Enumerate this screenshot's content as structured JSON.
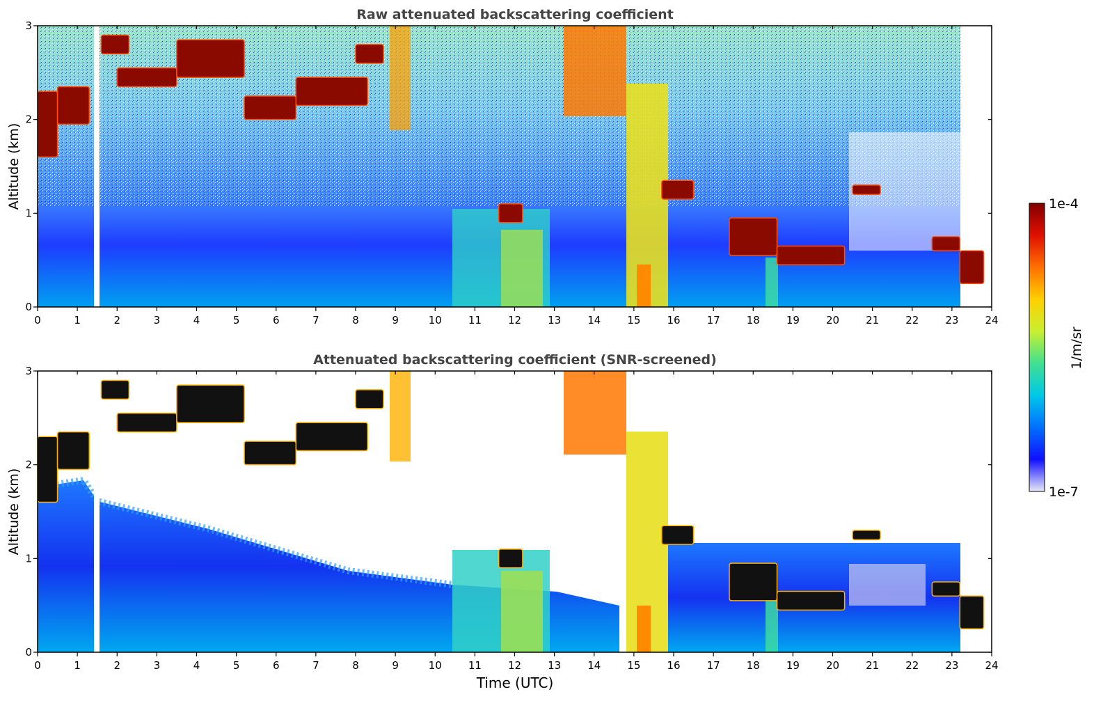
{
  "chart_data": [
    {
      "type": "heatmap",
      "title": "Raw attenuated backscattering coefficient",
      "xlabel": "",
      "ylabel": "Altitude (km)",
      "xlim": [
        0,
        24
      ],
      "ylim": [
        0,
        3
      ],
      "xticks": [
        "0",
        "1",
        "2",
        "3",
        "4",
        "5",
        "6",
        "7",
        "8",
        "9",
        "10",
        "11",
        "12",
        "13",
        "14",
        "15",
        "16",
        "17",
        "18",
        "19",
        "20",
        "21",
        "22",
        "23",
        "24"
      ],
      "yticks": [
        "0",
        "1",
        "2",
        "3"
      ],
      "grid": false,
      "cloud_segments": [
        {
          "x": [
            0.0,
            0.5
          ],
          "y": [
            1.6,
            2.3
          ]
        },
        {
          "x": [
            0.5,
            1.3
          ],
          "y": [
            1.95,
            2.35
          ]
        },
        {
          "x": [
            1.6,
            2.3
          ],
          "y": [
            2.7,
            2.9
          ]
        },
        {
          "x": [
            2.0,
            3.5
          ],
          "y": [
            2.35,
            2.55
          ]
        },
        {
          "x": [
            3.5,
            5.2
          ],
          "y": [
            2.45,
            2.85
          ]
        },
        {
          "x": [
            5.2,
            6.5
          ],
          "y": [
            2.0,
            2.25
          ]
        },
        {
          "x": [
            6.5,
            8.3
          ],
          "y": [
            2.15,
            2.45
          ]
        },
        {
          "x": [
            8.0,
            8.7
          ],
          "y": [
            2.6,
            2.8
          ]
        },
        {
          "x": [
            11.6,
            12.2
          ],
          "y": [
            0.9,
            1.1
          ]
        },
        {
          "x": [
            15.7,
            16.5
          ],
          "y": [
            1.15,
            1.35
          ]
        },
        {
          "x": [
            17.4,
            18.6
          ],
          "y": [
            0.55,
            0.95
          ]
        },
        {
          "x": [
            18.6,
            20.3
          ],
          "y": [
            0.45,
            0.65
          ]
        },
        {
          "x": [
            20.5,
            21.2
          ],
          "y": [
            1.2,
            1.3
          ]
        },
        {
          "x": [
            22.5,
            23.2
          ],
          "y": [
            0.6,
            0.75
          ]
        },
        {
          "x": [
            23.2,
            23.8
          ],
          "y": [
            0.25,
            0.6
          ]
        }
      ]
    },
    {
      "type": "heatmap",
      "title": "Attenuated backscattering coefficient (SNR-screened)",
      "xlabel": "Time (UTC)",
      "ylabel": "Altitude (km)",
      "xlim": [
        0,
        24
      ],
      "ylim": [
        0,
        3
      ],
      "xticks": [
        "0",
        "1",
        "2",
        "3",
        "4",
        "5",
        "6",
        "7",
        "8",
        "9",
        "10",
        "11",
        "12",
        "13",
        "14",
        "15",
        "16",
        "17",
        "18",
        "19",
        "20",
        "21",
        "22",
        "23",
        "24"
      ],
      "yticks": [
        "0",
        "1",
        "2",
        "3"
      ],
      "grid": false
    }
  ],
  "colorbar": {
    "label": "1/m/sr",
    "max_label": "1e-4",
    "min_label": "1e-7",
    "colors": [
      "#e8e8f8",
      "#1010ff",
      "#0070ff",
      "#00c8e8",
      "#40e090",
      "#c8f030",
      "#ffd000",
      "#ff7000",
      "#e01000",
      "#800000"
    ]
  }
}
